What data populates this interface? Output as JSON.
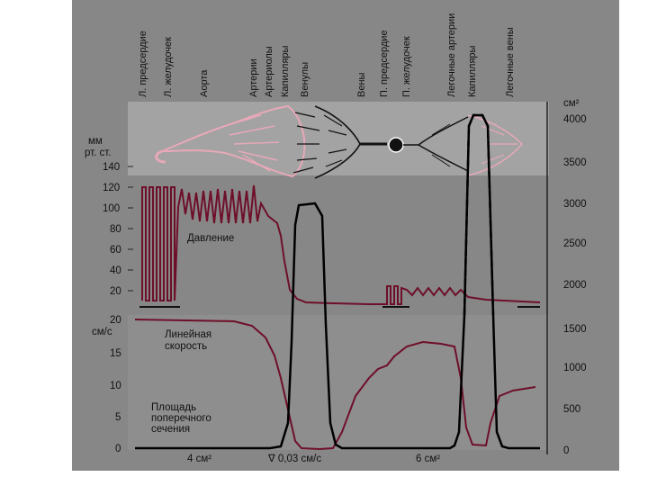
{
  "figure": {
    "vessel_labels": [
      "Л. предсердие",
      "Л. желудочек",
      "Аорта",
      "Артерии",
      "Артериолы",
      "Капилляры",
      "Венулы",
      "Вены",
      "П. предсердие",
      "П. желудочек",
      "Легочные артерии",
      "Капилляры",
      "Легочные вены"
    ],
    "left_axis_top": {
      "unit_line1": "мм",
      "unit_line2": "рт. ст.",
      "ticks": [
        "140",
        "120",
        "100",
        "80",
        "60",
        "40",
        "20"
      ]
    },
    "left_axis_bottom": {
      "top_tick": "20",
      "unit": "см/с",
      "ticks": [
        "15",
        "10",
        "5",
        "0"
      ]
    },
    "right_axis": {
      "unit": "см²",
      "ticks": [
        "4000",
        "3500",
        "3000",
        "2500",
        "2000",
        "1500",
        "1000",
        "500",
        "0"
      ]
    },
    "annotations": {
      "pressure": "Давление",
      "velocity_line1": "Линейная",
      "velocity_line2": "скорость",
      "area_line1": "Площадь",
      "area_line2": "поперечного",
      "area_line3": "сечения",
      "bottom_left": "4 см²",
      "bottom_mid": "∇ 0,03 см/с",
      "bottom_right": "6 см²"
    },
    "colors": {
      "background": "#878787",
      "panel": "#9a9a9a",
      "pressure_line": "#6e0f2a",
      "area_line": "#000000",
      "vessel_pink": "#e8a8b8"
    }
  }
}
